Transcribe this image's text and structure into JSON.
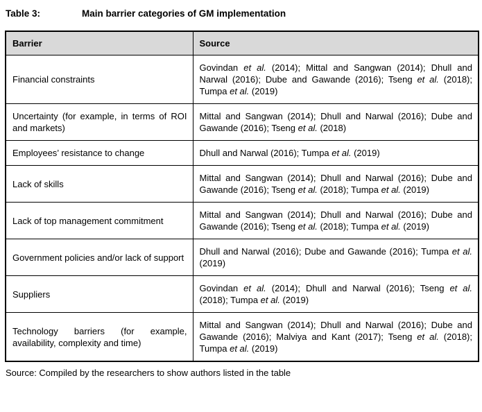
{
  "caption": {
    "label": "Table 3:",
    "text": "Main barrier categories of GM implementation"
  },
  "table": {
    "headers": [
      "Barrier",
      "Source"
    ],
    "rows": [
      {
        "barrier": "Financial constraints",
        "source": [
          {
            "text": "Govindan "
          },
          {
            "text": "et al.",
            "italic": true
          },
          {
            "text": " (2014); Mittal and Sangwan (2014); Dhull and Narwal (2016); Dube and Gawande (2016); Tseng "
          },
          {
            "text": "et al.",
            "italic": true
          },
          {
            "text": " (2018); Tumpa "
          },
          {
            "text": "et al.",
            "italic": true
          },
          {
            "text": " (2019)"
          }
        ]
      },
      {
        "barrier": "Uncertainty (for example, in terms of ROI and markets)",
        "source": [
          {
            "text": "Mittal and Sangwan (2014); Dhull and Narwal (2016); Dube and Gawande (2016); Tseng "
          },
          {
            "text": "et al.",
            "italic": true
          },
          {
            "text": " (2018)"
          }
        ]
      },
      {
        "barrier": "Employees’ resistance to change",
        "source": [
          {
            "text": "Dhull and Narwal (2016); Tumpa "
          },
          {
            "text": "et al.",
            "italic": true
          },
          {
            "text": " (2019)"
          }
        ]
      },
      {
        "barrier": "Lack of skills",
        "source": [
          {
            "text": "Mittal and Sangwan (2014); Dhull and Narwal (2016); Dube and Gawande (2016); Tseng "
          },
          {
            "text": "et al.",
            "italic": true
          },
          {
            "text": " (2018); Tumpa "
          },
          {
            "text": "et al.",
            "italic": true
          },
          {
            "text": " (2019)"
          }
        ]
      },
      {
        "barrier": "Lack of top management commitment",
        "source": [
          {
            "text": "Mittal and Sangwan (2014); Dhull and Narwal (2016); Dube and Gawande (2016); Tseng "
          },
          {
            "text": "et al.",
            "italic": true
          },
          {
            "text": " (2018); Tumpa "
          },
          {
            "text": "et al.",
            "italic": true
          },
          {
            "text": " (2019)"
          }
        ]
      },
      {
        "barrier": "Government policies and/or lack of support",
        "source": [
          {
            "text": "Dhull and Narwal (2016); Dube and Gawande (2016); Tumpa "
          },
          {
            "text": "et al.",
            "italic": true
          },
          {
            "text": " (2019)"
          }
        ]
      },
      {
        "barrier": "Suppliers",
        "source": [
          {
            "text": "Govindan "
          },
          {
            "text": "et al.",
            "italic": true
          },
          {
            "text": " (2014); Dhull and Narwal (2016); Tseng "
          },
          {
            "text": "et al.",
            "italic": true
          },
          {
            "text": " (2018); Tumpa "
          },
          {
            "text": "et al.",
            "italic": true
          },
          {
            "text": " (2019)"
          }
        ]
      },
      {
        "barrier": "Technology barriers (for example, availability, complexity and time)",
        "source": [
          {
            "text": "Mittal and Sangwan (2014); Dhull and Narwal (2016); Dube and Gawande (2016); Malviya and Kant (2017); Tseng "
          },
          {
            "text": "et al.",
            "italic": true
          },
          {
            "text": " (2018); Tumpa "
          },
          {
            "text": "et al.",
            "italic": true
          },
          {
            "text": " (2019)"
          }
        ]
      }
    ]
  },
  "footer": "Source: Compiled by the researchers to show authors listed in the table",
  "colors": {
    "header_bg": "#d9d9d9",
    "border": "#000000",
    "text": "#000000",
    "page_bg": "#ffffff"
  }
}
